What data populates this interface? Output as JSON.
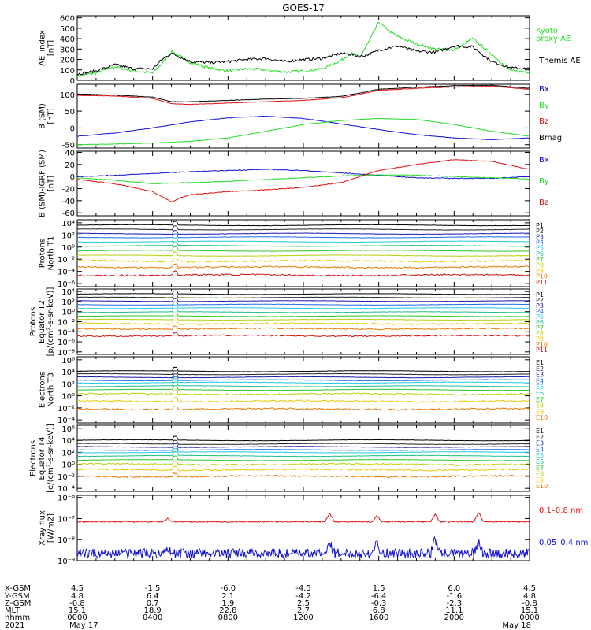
{
  "title": "GOES-17",
  "colors": {
    "black": "#000000",
    "red": "#e01010",
    "green": "#22dd22",
    "blue": "#1010d0",
    "ch": [
      "#000000",
      "#222222",
      "#1a1aa8",
      "#1e6ee8",
      "#20c8e8",
      "#18c08c",
      "#28c828",
      "#b8d010",
      "#e8c800",
      "#e87800",
      "#d01010"
    ]
  },
  "panels": [
    {
      "id": "ae",
      "ylabel": [
        "AE_index",
        "[nT]"
      ],
      "scale": "linear",
      "ylim": [
        0,
        620
      ],
      "ticks": [
        "0",
        "100",
        "200",
        "300",
        "400",
        "500",
        "600"
      ],
      "tick_values": [
        0,
        100,
        200,
        300,
        400,
        500,
        600
      ],
      "legend": [
        {
          "text": "Kyoto",
          "color": "#22dd22"
        },
        {
          "text": "proxy AE",
          "color": "#22dd22"
        },
        {
          "text": "Themis AE",
          "color": "#000000"
        }
      ],
      "series": [
        {
          "name": "Kyoto proxy AE",
          "color": "#22dd22",
          "x": [
            0,
            1,
            2,
            3,
            4,
            4.5,
            5,
            6,
            7,
            8,
            9,
            10,
            11,
            12,
            13,
            14,
            14.5,
            15,
            15.5,
            16,
            16.5,
            17,
            18,
            19,
            20,
            21,
            22,
            23,
            24
          ],
          "y": [
            40,
            70,
            130,
            90,
            70,
            160,
            280,
            170,
            120,
            90,
            110,
            100,
            80,
            90,
            110,
            190,
            260,
            220,
            380,
            560,
            480,
            420,
            350,
            300,
            290,
            400,
            250,
            90,
            80
          ]
        },
        {
          "name": "Themis AE",
          "color": "#000000",
          "x": [
            0,
            1,
            2,
            3,
            4,
            4.5,
            5,
            6,
            7,
            8,
            9,
            10,
            11,
            12,
            13,
            14,
            14.5,
            15,
            15.5,
            16,
            16.5,
            17,
            18,
            19,
            20,
            21,
            22,
            23,
            24
          ],
          "y": [
            60,
            90,
            150,
            110,
            110,
            200,
            260,
            180,
            170,
            180,
            200,
            210,
            180,
            200,
            210,
            260,
            250,
            230,
            250,
            290,
            310,
            330,
            280,
            270,
            330,
            320,
            180,
            120,
            110
          ]
        }
      ]
    },
    {
      "id": "bsm",
      "ylabel": [
        "B (SM)",
        "[nT]"
      ],
      "scale": "linear",
      "ylim": [
        -60,
        130
      ],
      "ticks": [
        "-50",
        "0",
        "50",
        "100"
      ],
      "tick_values": [
        -50,
        0,
        50,
        100
      ],
      "legend": [
        {
          "text": "Bx",
          "color": "#1010d0"
        },
        {
          "text": "By",
          "color": "#22dd22"
        },
        {
          "text": "Bz",
          "color": "#e01010"
        },
        {
          "text": "Bmag",
          "color": "#000000"
        }
      ],
      "series": [
        {
          "name": "Bx",
          "color": "#1010d0",
          "x": [
            0,
            2,
            4,
            6,
            8,
            10,
            12,
            14,
            16,
            18,
            20,
            22,
            24
          ],
          "y": [
            -25,
            -15,
            0,
            18,
            30,
            35,
            28,
            12,
            -5,
            -20,
            -30,
            -35,
            -30
          ]
        },
        {
          "name": "By",
          "color": "#22dd22",
          "x": [
            0,
            2,
            4,
            6,
            8,
            10,
            12,
            14,
            16,
            18,
            20,
            22,
            24
          ],
          "y": [
            -50,
            -48,
            -45,
            -40,
            -30,
            -10,
            10,
            22,
            28,
            25,
            10,
            -10,
            -25
          ]
        },
        {
          "name": "Bz",
          "color": "#e01010",
          "x": [
            0,
            2,
            4,
            5,
            6,
            8,
            10,
            12,
            14,
            15,
            16,
            18,
            20,
            22,
            24
          ],
          "y": [
            97,
            95,
            88,
            72,
            70,
            74,
            78,
            82,
            90,
            100,
            112,
            118,
            122,
            124,
            115
          ]
        },
        {
          "name": "Bmag",
          "color": "#000000",
          "x": [
            0,
            2,
            4,
            5,
            6,
            8,
            10,
            12,
            14,
            15,
            16,
            18,
            20,
            22,
            24
          ],
          "y": [
            101,
            98,
            92,
            78,
            78,
            82,
            86,
            88,
            94,
            104,
            115,
            121,
            126,
            127,
            118
          ]
        }
      ]
    },
    {
      "id": "bigrf",
      "ylabel": [
        "B (SM)-IGRF (SM)",
        "[nT]"
      ],
      "scale": "linear",
      "ylim": [
        -65,
        42
      ],
      "ticks": [
        "-60",
        "-40",
        "-20",
        "0",
        "20",
        "40"
      ],
      "tick_values": [
        -60,
        -40,
        -20,
        0,
        20,
        40
      ],
      "legend": [
        {
          "text": "Bx",
          "color": "#1010d0"
        },
        {
          "text": "By",
          "color": "#22dd22"
        },
        {
          "text": "Bz",
          "color": "#e01010"
        }
      ],
      "series": [
        {
          "name": "Bx",
          "color": "#1010d0",
          "x": [
            0,
            2,
            4,
            6,
            8,
            10,
            12,
            14,
            16,
            18,
            20,
            22,
            24
          ],
          "y": [
            0,
            2,
            5,
            8,
            10,
            12,
            10,
            6,
            2,
            -2,
            -3,
            -3,
            0
          ]
        },
        {
          "name": "By",
          "color": "#22dd22",
          "x": [
            0,
            2,
            4,
            6,
            8,
            10,
            12,
            14,
            16,
            18,
            20,
            22,
            24
          ],
          "y": [
            -2,
            -6,
            -12,
            -10,
            -8,
            -5,
            -2,
            1,
            3,
            2,
            0,
            -2,
            -4
          ]
        },
        {
          "name": "Bz",
          "color": "#e01010",
          "x": [
            0,
            2,
            4,
            5,
            5.5,
            6,
            8,
            10,
            12,
            14,
            15,
            16,
            18,
            20,
            22,
            24
          ],
          "y": [
            -5,
            -12,
            -25,
            -42,
            -35,
            -30,
            -25,
            -22,
            -18,
            -10,
            0,
            10,
            20,
            28,
            25,
            12
          ]
        }
      ]
    },
    {
      "id": "pn",
      "ylabel": [
        "Protons",
        "North T1"
      ],
      "scale": "log",
      "ylim": [
        -6.5,
        4.5
      ],
      "ticks": [
        "10⁴",
        "10²",
        "10⁰",
        "10⁻²",
        "10⁻⁴",
        "10⁻⁶"
      ],
      "tick_values": [
        4,
        2,
        0,
        -2,
        -4,
        -6
      ],
      "legend_small": [
        "P1",
        "P2",
        "P3",
        "P4",
        "P5",
        "P6",
        "P7",
        "P8",
        "P9",
        "P10",
        "P11"
      ],
      "levels": [
        3.6,
        2.9,
        2.2,
        1.6,
        0.9,
        0.2,
        -0.6,
        -1.4,
        -2.3,
        -3.3,
        -4.6
      ]
    },
    {
      "id": "pe",
      "ylabel": [
        "Protons",
        "Equator T2",
        "[p/(cm²-s-sr-keV)]"
      ],
      "scale": "log",
      "ylim": [
        -8.5,
        4.5
      ],
      "ticks": [
        "10⁴",
        "10²",
        "10⁰",
        "10⁻²",
        "10⁻⁴",
        "10⁻⁶",
        "10⁻⁸"
      ],
      "tick_values": [
        4,
        2,
        0,
        -2,
        -4,
        -6,
        -8
      ],
      "legend_small": [
        "P1",
        "P2",
        "P3",
        "P4",
        "P5",
        "P6",
        "P7",
        "P8",
        "P9",
        "P10",
        "P11"
      ],
      "levels": [
        3.5,
        2.8,
        2.1,
        1.4,
        0.7,
        -0.1,
        -0.9,
        -1.6,
        -2.4,
        -3.4,
        -4.8
      ]
    },
    {
      "id": "en",
      "ylabel": [
        "Electrons",
        "North T3"
      ],
      "scale": "log",
      "ylim": [
        -4.5,
        6.5
      ],
      "ticks": [
        "10⁶",
        "10⁴",
        "10²",
        "10⁰",
        "10⁻²",
        "10⁻⁴"
      ],
      "tick_values": [
        6,
        4,
        2,
        0,
        -2,
        -4
      ],
      "legend_small": [
        "E1",
        "E2",
        "E3",
        "E4",
        "E5",
        "E6",
        "E7",
        "E8",
        "E9",
        "E10"
      ],
      "levels": [
        4.1,
        3.6,
        3.1,
        2.6,
        2.2,
        1.6,
        1.0,
        0.3,
        -0.9,
        -2.2
      ]
    },
    {
      "id": "ee",
      "ylabel": [
        "Electrons",
        "Equator T4",
        "[e/(cm²-s-sr-keV)]"
      ],
      "scale": "log",
      "ylim": [
        -4.5,
        6.5
      ],
      "ticks": [
        "10⁶",
        "10⁴",
        "10²",
        "10⁰",
        "10⁻²",
        "10⁻⁴"
      ],
      "tick_values": [
        6,
        4,
        2,
        0,
        -2,
        -4
      ],
      "legend_small": [
        "E1",
        "E2",
        "E3",
        "E4",
        "E5",
        "E6",
        "E7",
        "E8",
        "E9",
        "E10"
      ],
      "levels": [
        4.0,
        3.4,
        2.9,
        2.4,
        2.0,
        1.4,
        0.7,
        0.0,
        -0.9,
        -2.0
      ]
    },
    {
      "id": "xray",
      "ylabel": [
        "Xray flux",
        "[W/m2]"
      ],
      "scale": "log",
      "ylim": [
        -9.0,
        -5.9
      ],
      "ticks": [
        "10⁻⁶",
        "10⁻⁷",
        "10⁻⁸",
        "10⁻⁹"
      ],
      "tick_values": [
        -6,
        -7,
        -8,
        -9
      ],
      "legend": [
        {
          "text": "0.1–0.8 nm",
          "color": "#e01010"
        },
        {
          "text": "0.05–0.4 nm",
          "color": "#1010d0"
        }
      ],
      "series": [
        {
          "name": "0.1–0.8 nm",
          "color": "#e01010",
          "level": -7.15,
          "spikes_x": [
            4.8,
            13.4,
            15.9,
            19.0,
            21.3
          ],
          "spikes_h": [
            0.15,
            0.4,
            0.3,
            0.35,
            0.45
          ]
        },
        {
          "name": "0.05–0.4 nm",
          "color": "#1010d0",
          "level": -8.65,
          "spikes_x": [
            4.8,
            13.4,
            15.9,
            19.0,
            21.3
          ],
          "spikes_h": [
            0.2,
            0.5,
            0.6,
            0.7,
            0.55
          ]
        }
      ]
    }
  ],
  "ephemeris": {
    "labels": [
      "X-GSM",
      "Y-GSM",
      "Z-GSM",
      "MLT",
      "hhmm",
      "2021"
    ],
    "columns": [
      [
        "4.5",
        "4.8",
        "-0.8",
        "15.1",
        "0000",
        "May 17"
      ],
      [
        "-1.5",
        "6.4",
        "0.7",
        "18.9",
        "0400",
        ""
      ],
      [
        "-6.0",
        "2.1",
        "1.9",
        "22.8",
        "0800",
        ""
      ],
      [
        "-4.5",
        "-4.2",
        "2.5",
        "2.7",
        "1200",
        ""
      ],
      [
        "1.5",
        "-6.4",
        "-0.3",
        "6.8",
        "1600",
        ""
      ],
      [
        "6.0",
        "-1.6",
        "-2.3",
        "11.1",
        "2000",
        ""
      ],
      [
        "4.5",
        "4.8",
        "-0.8",
        "15.1",
        "0000",
        "May 18"
      ]
    ]
  }
}
